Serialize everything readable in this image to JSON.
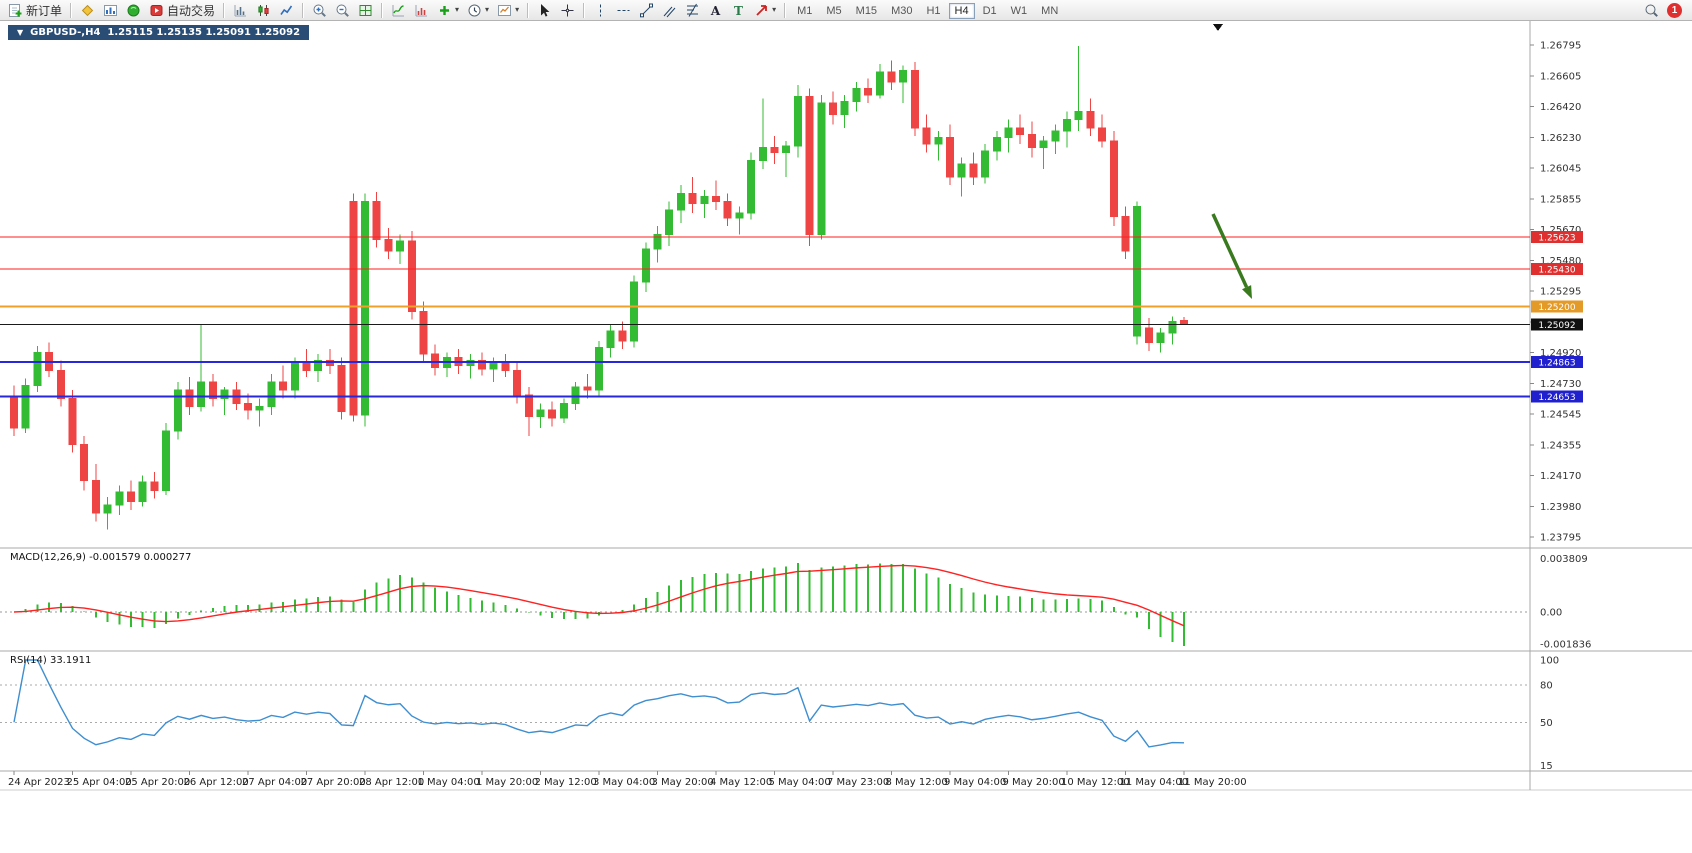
{
  "toolbar": {
    "new_order_label": "新订单",
    "auto_trading_label": "自动交易",
    "timeframes": [
      "M1",
      "M5",
      "M15",
      "M30",
      "H1",
      "H4",
      "D1",
      "W1",
      "MN"
    ],
    "active_timeframe": "H4",
    "notification_count": "1",
    "dropdown_caret": "▾"
  },
  "chart_header": {
    "collapse_icon": "▼",
    "title": "GBPUSD-,H4",
    "ohlc": "1.25115  1.25135  1.25091  1.25092"
  },
  "chart_data": {
    "type": "candlestick",
    "symbol": "GBPUSD-",
    "timeframe": "H4",
    "colors": {
      "bull": "#33bb33",
      "bear": "#ef4444",
      "macd_signal": "#ff2222",
      "rsi_line": "#3e8ed0"
    },
    "price_range": {
      "max": 1.26795,
      "min": 1.23795
    },
    "price_axis": [
      "1.26795",
      "1.26605",
      "1.26420",
      "1.26230",
      "1.26045",
      "1.25855",
      "1.25670",
      "1.25480",
      "1.25295",
      "1.25105",
      "1.24920",
      "1.24730",
      "1.24545",
      "1.24355",
      "1.24170",
      "1.23980",
      "1.23795"
    ],
    "candles": [
      [
        1.2465,
        1.2472,
        1.2441,
        1.2446
      ],
      [
        1.2446,
        1.2476,
        1.2443,
        1.2472
      ],
      [
        1.2472,
        1.2496,
        1.2468,
        1.2492
      ],
      [
        1.2492,
        1.2498,
        1.2477,
        1.2481
      ],
      [
        1.2481,
        1.2487,
        1.2459,
        1.2464
      ],
      [
        1.2464,
        1.2469,
        1.2431,
        1.2436
      ],
      [
        1.2436,
        1.2441,
        1.2408,
        1.2414
      ],
      [
        1.2414,
        1.2424,
        1.2389,
        1.2394
      ],
      [
        1.2394,
        1.2404,
        1.2384,
        1.2399
      ],
      [
        1.2399,
        1.2411,
        1.2393,
        1.2407
      ],
      [
        1.2407,
        1.2414,
        1.2396,
        1.2401
      ],
      [
        1.2401,
        1.2417,
        1.2398,
        1.2413
      ],
      [
        1.2413,
        1.2419,
        1.2403,
        1.2408
      ],
      [
        1.2408,
        1.2449,
        1.2405,
        1.2444
      ],
      [
        1.2444,
        1.2474,
        1.2439,
        1.2469
      ],
      [
        1.2469,
        1.2477,
        1.2454,
        1.2459
      ],
      [
        1.2459,
        1.2509,
        1.2456,
        1.2474
      ],
      [
        1.2474,
        1.2479,
        1.2459,
        1.2464
      ],
      [
        1.2464,
        1.2471,
        1.2454,
        1.2469
      ],
      [
        1.2469,
        1.2474,
        1.2457,
        1.2461
      ],
      [
        1.2461,
        1.2467,
        1.2451,
        1.2457
      ],
      [
        1.2457,
        1.2464,
        1.2447,
        1.2459
      ],
      [
        1.2459,
        1.2479,
        1.2454,
        1.2474
      ],
      [
        1.2474,
        1.2484,
        1.2464,
        1.2469
      ],
      [
        1.2469,
        1.2489,
        1.2464,
        1.2486
      ],
      [
        1.2486,
        1.2494,
        1.2477,
        1.2481
      ],
      [
        1.2481,
        1.2491,
        1.2474,
        1.2487
      ],
      [
        1.2487,
        1.2494,
        1.2479,
        1.2484
      ],
      [
        1.2484,
        1.2489,
        1.2451,
        1.2456
      ],
      [
        1.2584,
        1.2589,
        1.245,
        1.2454
      ],
      [
        1.2454,
        1.2589,
        1.2447,
        1.2584
      ],
      [
        1.2584,
        1.259,
        1.2556,
        1.2561
      ],
      [
        1.2561,
        1.2568,
        1.2549,
        1.2554
      ],
      [
        1.2554,
        1.2564,
        1.2546,
        1.256
      ],
      [
        1.256,
        1.2566,
        1.2512,
        1.2517
      ],
      [
        1.2517,
        1.2523,
        1.2486,
        1.2491
      ],
      [
        1.2491,
        1.2497,
        1.2478,
        1.2483
      ],
      [
        1.2483,
        1.2492,
        1.2477,
        1.2489
      ],
      [
        1.2489,
        1.2494,
        1.2479,
        1.2484
      ],
      [
        1.2484,
        1.2491,
        1.2476,
        1.2487
      ],
      [
        1.2487,
        1.2492,
        1.2478,
        1.2482
      ],
      [
        1.2482,
        1.2489,
        1.2474,
        1.2486
      ],
      [
        1.2486,
        1.2491,
        1.2477,
        1.2481
      ],
      [
        1.2481,
        1.2486,
        1.2461,
        1.2466
      ],
      [
        1.2466,
        1.2471,
        1.2441,
        1.2453
      ],
      [
        1.2453,
        1.2461,
        1.2446,
        1.2457
      ],
      [
        1.2457,
        1.2462,
        1.2447,
        1.2452
      ],
      [
        1.2452,
        1.2464,
        1.2449,
        1.2461
      ],
      [
        1.2461,
        1.2474,
        1.2457,
        1.2471
      ],
      [
        1.2471,
        1.2479,
        1.2464,
        1.2469
      ],
      [
        1.2469,
        1.2499,
        1.2465,
        1.2495
      ],
      [
        1.2495,
        1.2509,
        1.2489,
        1.2505
      ],
      [
        1.2505,
        1.2511,
        1.2494,
        1.2499
      ],
      [
        1.2499,
        1.2539,
        1.2495,
        1.2535
      ],
      [
        1.2535,
        1.2559,
        1.2529,
        1.2555
      ],
      [
        1.2555,
        1.2569,
        1.2547,
        1.2564
      ],
      [
        1.2564,
        1.2584,
        1.2557,
        1.2579
      ],
      [
        1.2579,
        1.2594,
        1.2571,
        1.2589
      ],
      [
        1.2589,
        1.2599,
        1.2577,
        1.2583
      ],
      [
        1.2583,
        1.2591,
        1.2574,
        1.2587
      ],
      [
        1.2587,
        1.2597,
        1.2579,
        1.2584
      ],
      [
        1.2584,
        1.2589,
        1.2569,
        1.2574
      ],
      [
        1.2574,
        1.2581,
        1.2564,
        1.2577
      ],
      [
        1.2577,
        1.2614,
        1.2573,
        1.2609
      ],
      [
        1.2609,
        1.2647,
        1.2604,
        1.2617
      ],
      [
        1.2617,
        1.2624,
        1.2607,
        1.2614
      ],
      [
        1.2614,
        1.2621,
        1.2599,
        1.2618
      ],
      [
        1.2618,
        1.2655,
        1.2611,
        1.2648
      ],
      [
        1.2648,
        1.2653,
        1.2557,
        1.2564
      ],
      [
        1.2564,
        1.2649,
        1.2561,
        1.2644
      ],
      [
        1.2644,
        1.2651,
        1.2631,
        1.2637
      ],
      [
        1.2637,
        1.2649,
        1.2629,
        1.2645
      ],
      [
        1.2645,
        1.2657,
        1.2639,
        1.2653
      ],
      [
        1.2653,
        1.2659,
        1.2644,
        1.2649
      ],
      [
        1.2649,
        1.2668,
        1.2647,
        1.2663
      ],
      [
        1.2663,
        1.267,
        1.2652,
        1.2657
      ],
      [
        1.2657,
        1.2667,
        1.2644,
        1.2664
      ],
      [
        1.2664,
        1.2669,
        1.2624,
        1.2629
      ],
      [
        1.2629,
        1.2637,
        1.2614,
        1.2619
      ],
      [
        1.2619,
        1.2627,
        1.2609,
        1.2623
      ],
      [
        1.2623,
        1.2631,
        1.2594,
        1.2599
      ],
      [
        1.2599,
        1.2611,
        1.2587,
        1.2607
      ],
      [
        1.2607,
        1.2614,
        1.2594,
        1.2599
      ],
      [
        1.2599,
        1.2619,
        1.2595,
        1.2615
      ],
      [
        1.2615,
        1.2627,
        1.2609,
        1.2623
      ],
      [
        1.2623,
        1.2634,
        1.2614,
        1.2629
      ],
      [
        1.2629,
        1.2637,
        1.2619,
        1.2625
      ],
      [
        1.2625,
        1.2633,
        1.2611,
        1.2617
      ],
      [
        1.2617,
        1.2624,
        1.2604,
        1.2621
      ],
      [
        1.2621,
        1.2631,
        1.2613,
        1.2627
      ],
      [
        1.2627,
        1.2639,
        1.2617,
        1.2634
      ],
      [
        1.2634,
        1.2679,
        1.2627,
        1.2639
      ],
      [
        1.2639,
        1.2647,
        1.2624,
        1.2629
      ],
      [
        1.2629,
        1.2637,
        1.2617,
        1.2621
      ],
      [
        1.2621,
        1.2627,
        1.2569,
        1.2575
      ],
      [
        1.2575,
        1.2581,
        1.2549,
        1.2554
      ],
      [
        1.2502,
        1.2584,
        1.2497,
        1.2581
      ],
      [
        1.2507,
        1.2513,
        1.2493,
        1.2498
      ],
      [
        1.2498,
        1.2507,
        1.2492,
        1.2504
      ],
      [
        1.2504,
        1.2514,
        1.2497,
        1.2511
      ],
      [
        1.25115,
        1.25135,
        1.25091,
        1.25092
      ]
    ],
    "label_every": 5,
    "time_labels": [
      "24 Apr 2023",
      "25 Apr 04:00",
      "25 Apr 20:00",
      "26 Apr 12:00",
      "27 Apr 04:00",
      "27 Apr 20:00",
      "28 Apr 12:00",
      "1 May 04:00",
      "1 May 20:00",
      "2 May 12:00",
      "3 May 04:00",
      "3 May 20:00",
      "4 May 12:00",
      "5 May 04:00",
      "7 May 23:00",
      "8 May 12:00",
      "9 May 04:00",
      "9 May 20:00",
      "10 May 12:00",
      "11 May 04:00",
      "11 May 20:00"
    ],
    "hlines": [
      {
        "label": "1.25623",
        "price": 1.25623,
        "color": "#ff1f1f",
        "badge": "#df2f2f",
        "width": 1
      },
      {
        "label": "1.25430",
        "price": 1.2543,
        "color": "#ff1f1f",
        "badge": "#df2f2f",
        "width": 1
      },
      {
        "label": "1.25200",
        "price": 1.252,
        "color": "#f0a028",
        "badge": "#e49a26",
        "width": 2
      },
      {
        "label": "1.25092",
        "price": 1.25092,
        "color": "#1a1a1a",
        "badge": "#101010",
        "width": 1
      },
      {
        "label": "1.24863",
        "price": 1.24863,
        "color": "#2727dd",
        "badge": "#2020cf",
        "width": 2
      },
      {
        "label": "1.24653",
        "price": 1.24653,
        "color": "#2727dd",
        "badge": "#2020cf",
        "width": 2
      }
    ],
    "macd": {
      "title": "MACD(12,26,9)",
      "values": "-0.001579 0.000277",
      "axis_max": "0.003809",
      "axis_zero": "0.00",
      "axis_min": "-0.001836",
      "params": {
        "fast": 12,
        "slow": 26,
        "signal": 9
      }
    },
    "rsi": {
      "title": "RSI(14)",
      "value": "33.1911",
      "period": 14,
      "axis_labels": [
        "100",
        "80",
        "50",
        "15"
      ],
      "level_lines": [
        80,
        50
      ]
    },
    "arrow_annotation": {
      "from": [
        1213,
        214
      ],
      "to": [
        1252,
        299
      ],
      "color": "#3a7a1e"
    }
  }
}
